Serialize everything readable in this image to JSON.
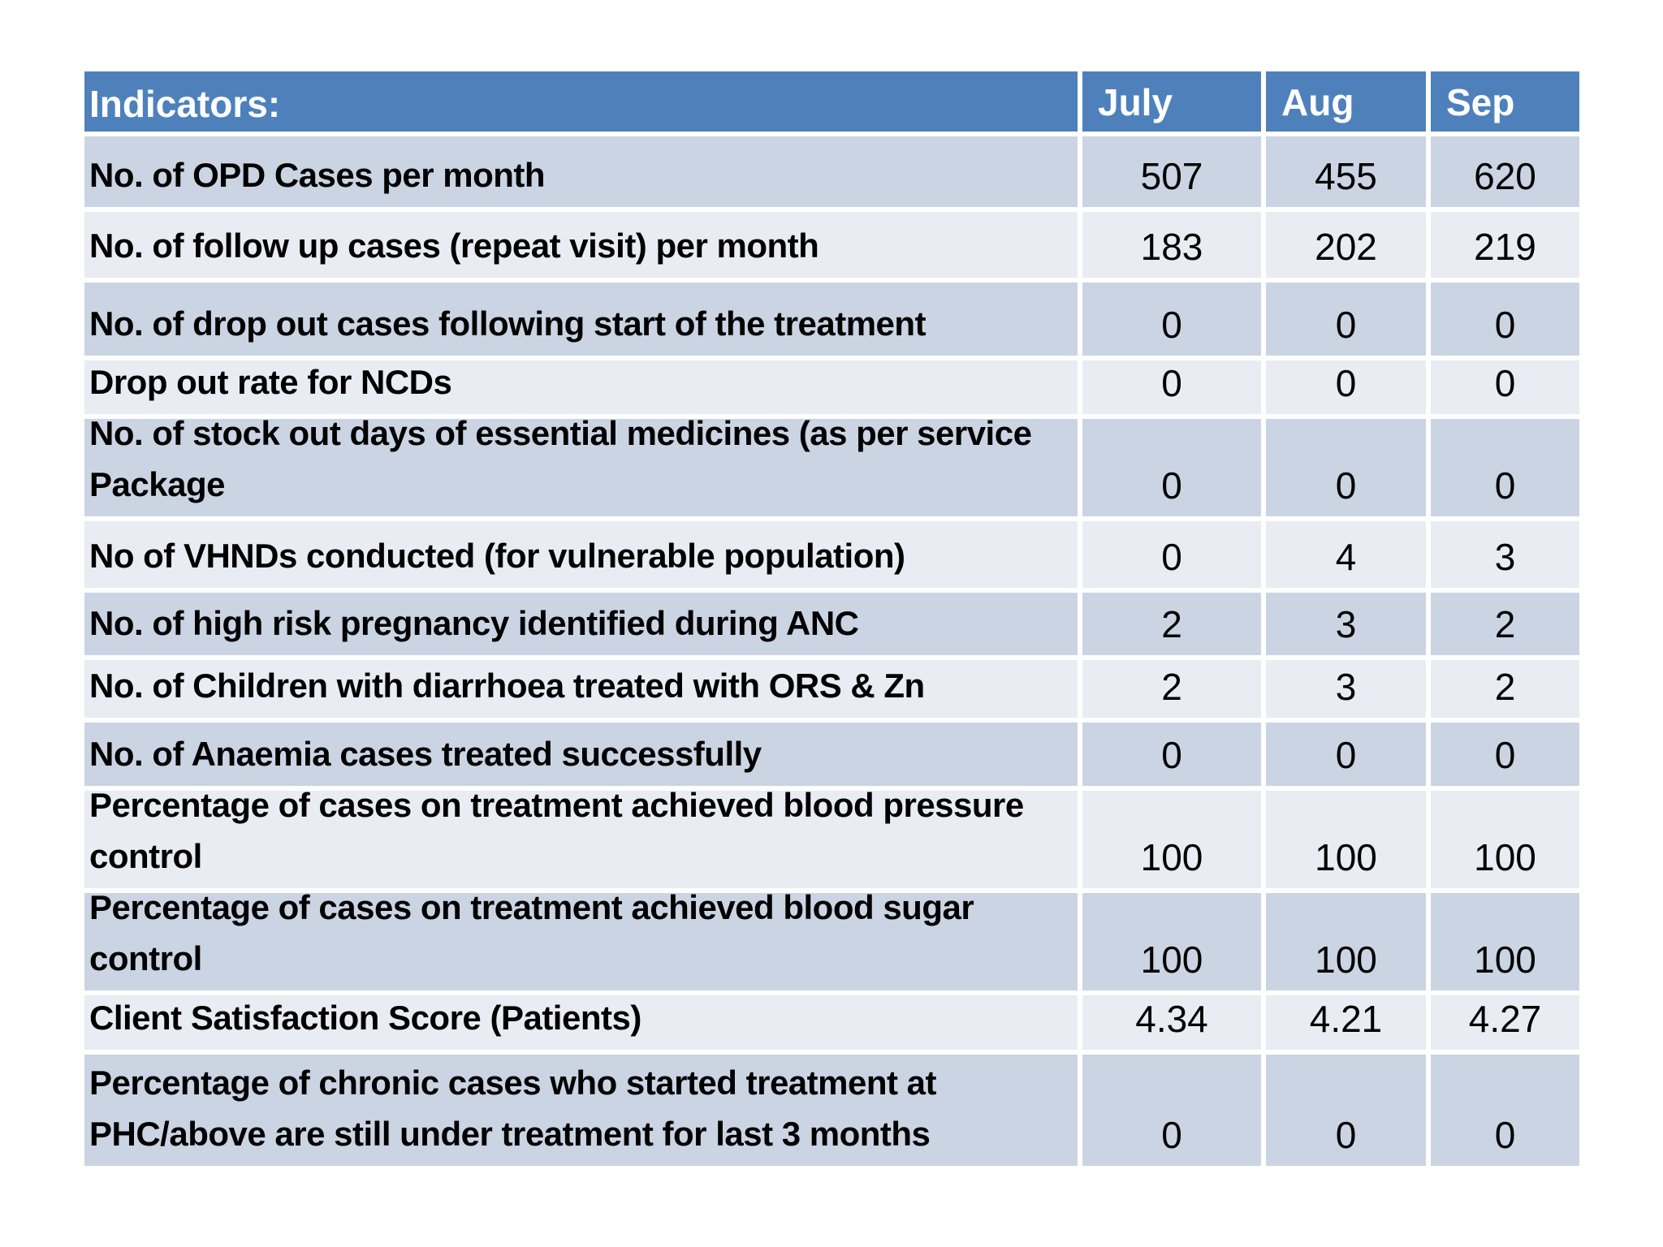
{
  "slide": {
    "background_color": "#ffffff"
  },
  "colors": {
    "header_bg": "#4e81bc",
    "header_text": "#ffffff",
    "band_dark": "#cbd4e3",
    "band_light": "#e9ecf2",
    "body_text": "#000000"
  },
  "table": {
    "header": {
      "indicators_label": "Indicators:",
      "months": [
        "July",
        "Aug",
        "Sep"
      ]
    },
    "rows": [
      {
        "indicator": "No. of OPD Cases per month",
        "values": [
          "507",
          "455",
          "620"
        ]
      },
      {
        "indicator": "No. of follow up cases (repeat visit) per month",
        "values": [
          "183",
          "202",
          "219"
        ]
      },
      {
        "indicator": "No. of  drop out  cases following start of the treatment",
        "values": [
          "0",
          "0",
          "0"
        ]
      },
      {
        "indicator": "Drop out rate for NCDs",
        "values": [
          "0",
          "0",
          "0"
        ]
      },
      {
        "indicator": "No. of stock out days of essential medicines (as per service Package",
        "values": [
          "0",
          "0",
          "0"
        ]
      },
      {
        "indicator": "No of VHNDs conducted (for vulnerable population)",
        "values": [
          "0",
          "4",
          "3"
        ]
      },
      {
        "indicator": "No. of high risk pregnancy identified during ANC",
        "values": [
          "2",
          "3",
          "2"
        ]
      },
      {
        "indicator": "No. of Children with diarrhoea treated with ORS & Zn",
        "values": [
          "2",
          "3",
          "2"
        ]
      },
      {
        "indicator": "No. of Anaemia cases treated successfully",
        "values": [
          "0",
          "0",
          "0"
        ]
      },
      {
        "indicator": "Percentage of cases on treatment achieved blood pressure control",
        "values": [
          "100",
          "100",
          "100"
        ]
      },
      {
        "indicator": "Percentage of cases on treatment achieved blood sugar control",
        "values": [
          "100",
          "100",
          "100"
        ]
      },
      {
        "indicator": "Client Satisfaction Score (Patients)",
        "values": [
          "4.34",
          "4.21",
          "4.27"
        ]
      },
      {
        "indicator": "Percentage of  chronic cases who started treatment at PHC/above are still under treatment for last 3 months",
        "values": [
          "0",
          "0",
          "0"
        ]
      }
    ]
  }
}
